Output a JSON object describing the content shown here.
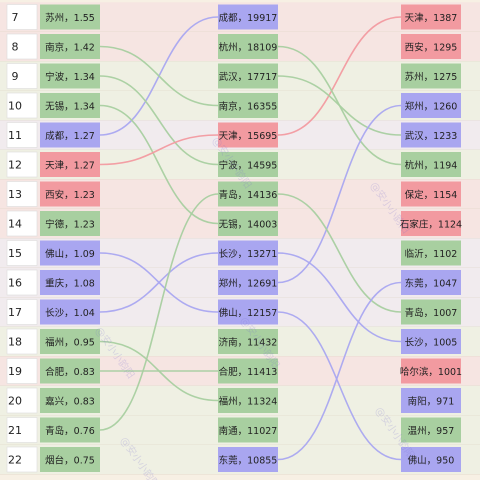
{
  "chart_data": {
    "type": "table",
    "rank_start": 7,
    "ranks": [
      "7",
      "8",
      "9",
      "10",
      "11",
      "12",
      "13",
      "14",
      "15",
      "16",
      "17",
      "18",
      "19",
      "20",
      "21",
      "22"
    ],
    "columns": [
      {
        "cells": [
          {
            "label": "苏州，1.55",
            "color": "green"
          },
          {
            "label": "南京，1.42",
            "color": "green"
          },
          {
            "label": "宁波，1.34",
            "color": "green"
          },
          {
            "label": "无锡，1.34",
            "color": "green"
          },
          {
            "label": "成都，1.27",
            "color": "purple"
          },
          {
            "label": "天津，1.27",
            "color": "red"
          },
          {
            "label": "西安，1.23",
            "color": "red"
          },
          {
            "label": "宁德，1.23",
            "color": "green"
          },
          {
            "label": "佛山，1.09",
            "color": "purple"
          },
          {
            "label": "重庆，1.08",
            "color": "purple"
          },
          {
            "label": "长沙，1.04",
            "color": "purple"
          },
          {
            "label": "福州，0.95",
            "color": "green"
          },
          {
            "label": "合肥，0.83",
            "color": "green"
          },
          {
            "label": "嘉兴，0.83",
            "color": "green"
          },
          {
            "label": "青岛，0.76",
            "color": "green"
          },
          {
            "label": "烟台，0.75",
            "color": "green"
          }
        ]
      },
      {
        "cells": [
          {
            "label": "成都，19917",
            "color": "purple"
          },
          {
            "label": "杭州，18109",
            "color": "green"
          },
          {
            "label": "武汉，17717",
            "color": "green"
          },
          {
            "label": "南京，16355",
            "color": "green"
          },
          {
            "label": "天津，15695",
            "color": "red"
          },
          {
            "label": "宁波，14595",
            "color": "green"
          },
          {
            "label": "青岛，14136",
            "color": "green"
          },
          {
            "label": "无锡，14003",
            "color": "green"
          },
          {
            "label": "长沙，13271",
            "color": "purple"
          },
          {
            "label": "郑州，12691",
            "color": "purple"
          },
          {
            "label": "佛山，12157",
            "color": "purple"
          },
          {
            "label": "济南，11432",
            "color": "green"
          },
          {
            "label": "合肥，11413",
            "color": "green"
          },
          {
            "label": "福州，11324",
            "color": "green"
          },
          {
            "label": "南通，11027",
            "color": "green"
          },
          {
            "label": "东莞，10855",
            "color": "purple"
          }
        ]
      },
      {
        "cells": [
          {
            "label": "天津，1387",
            "color": "red"
          },
          {
            "label": "西安，1295",
            "color": "red"
          },
          {
            "label": "苏州，1275",
            "color": "green"
          },
          {
            "label": "郑州，1260",
            "color": "purple"
          },
          {
            "label": "武汉，1233",
            "color": "purple"
          },
          {
            "label": "杭州，1194",
            "color": "green"
          },
          {
            "label": "保定，1154",
            "color": "red"
          },
          {
            "label": "石家庄，1124",
            "color": "red"
          },
          {
            "label": "临沂，1102",
            "color": "green"
          },
          {
            "label": "东莞，1047",
            "color": "purple"
          },
          {
            "label": "青岛，1007",
            "color": "green"
          },
          {
            "label": "长沙，1005",
            "color": "purple"
          },
          {
            "label": "哈尔滨，1001",
            "color": "red"
          },
          {
            "label": "南阳，971",
            "color": "purple"
          },
          {
            "label": "温州，957",
            "color": "green"
          },
          {
            "label": "佛山，950",
            "color": "purple"
          }
        ]
      }
    ],
    "links_left_to_middle": [
      [
        "成都，1.27",
        "成都，19917"
      ],
      [
        "南京，1.42",
        "南京，16355"
      ],
      [
        "宁波，1.34",
        "宁波，14595"
      ],
      [
        "无锡，1.34",
        "无锡，14003"
      ],
      [
        "天津，1.27",
        "天津，15695"
      ],
      [
        "佛山，1.09",
        "佛山，12157"
      ],
      [
        "长沙，1.04",
        "长沙，13271"
      ],
      [
        "福州，0.95",
        "福州，11324"
      ],
      [
        "合肥，0.83",
        "合肥，11413"
      ],
      [
        "青岛，0.76",
        "青岛，14136"
      ]
    ],
    "links_middle_to_right": [
      [
        "天津，15695",
        "天津，1387"
      ],
      [
        "杭州，18109",
        "杭州，1194"
      ],
      [
        "武汉，17717",
        "武汉，1233"
      ],
      [
        "郑州，12691",
        "郑州，1260"
      ],
      [
        "长沙，13271",
        "长沙，1005"
      ],
      [
        "青岛，14136",
        "青岛，1007"
      ],
      [
        "佛山，12157",
        "佛山，950"
      ],
      [
        "东莞，10855",
        "东莞，1047"
      ]
    ],
    "colors": {
      "green": "#a8cfa0",
      "purple": "#a9a6f0",
      "red": "#f29aa0",
      "rank_box": "#ffffff",
      "background": "#f7f0e4"
    },
    "watermark": "@安小小韵阳"
  }
}
